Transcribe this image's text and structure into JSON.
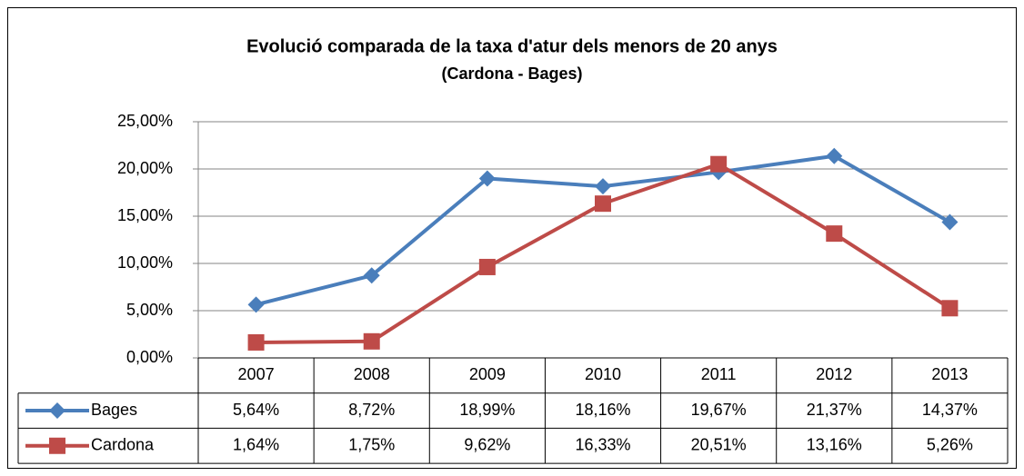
{
  "chart_data": {
    "type": "line",
    "title": "Evolució comparada de la taxa d'atur dels menors de 20 anys",
    "subtitle": "(Cardona - Bages)",
    "categories": [
      "2007",
      "2008",
      "2009",
      "2010",
      "2011",
      "2012",
      "2013"
    ],
    "series": [
      {
        "name": "Bages",
        "color": "#4a7ebb",
        "marker": "diamond",
        "values": [
          5.64,
          8.72,
          18.99,
          18.16,
          19.67,
          21.37,
          14.37
        ],
        "value_labels": [
          "5,64%",
          "8,72%",
          "18,99%",
          "18,16%",
          "19,67%",
          "21,37%",
          "14,37%"
        ]
      },
      {
        "name": "Cardona",
        "color": "#be4b48",
        "marker": "square",
        "values": [
          1.64,
          1.75,
          9.62,
          16.33,
          20.51,
          13.16,
          5.26
        ],
        "value_labels": [
          "1,64%",
          "1,75%",
          "9,62%",
          "16,33%",
          "20,51%",
          "13,16%",
          "5,26%"
        ]
      }
    ],
    "ylim": [
      0,
      25
    ],
    "yticks": [
      {
        "value": 0,
        "label": "0,00%"
      },
      {
        "value": 5,
        "label": "5,00%"
      },
      {
        "value": 10,
        "label": "10,00%"
      },
      {
        "value": 15,
        "label": "15,00%"
      },
      {
        "value": 20,
        "label": "20,00%"
      },
      {
        "value": 25,
        "label": "25,00%"
      }
    ],
    "grid": true
  }
}
